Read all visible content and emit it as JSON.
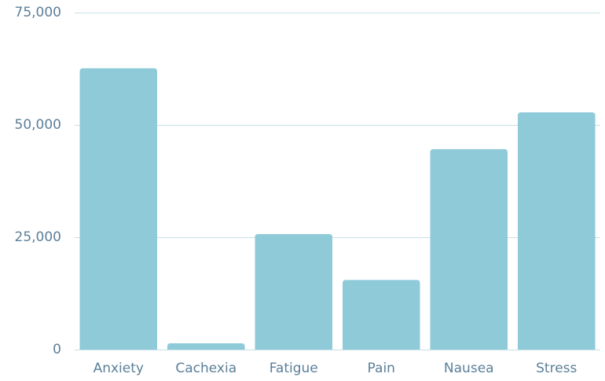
{
  "chart_data": {
    "type": "bar",
    "categories": [
      "Anxiety",
      "Cachexia",
      "Fatigue",
      "Pain",
      "Nausea",
      "Stress"
    ],
    "values": [
      62600,
      1400,
      25700,
      15500,
      44600,
      52800
    ],
    "color": "#8fcad9",
    "ylim": [
      0,
      75000
    ],
    "yticks": [
      0,
      {
        "value": 25000,
        "label": "25,000"
      },
      {
        "value": 50000,
        "label": "50,000"
      },
      {
        "value": 75000,
        "label": "75,000"
      }
    ],
    "grid": true
  }
}
